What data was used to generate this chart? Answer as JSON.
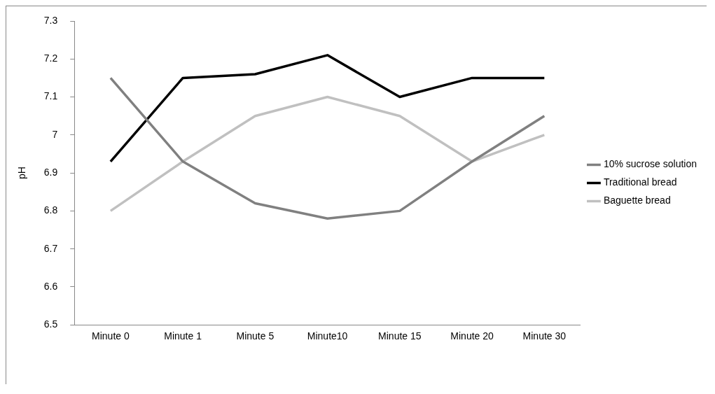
{
  "chart_data": {
    "type": "line",
    "ylabel": "pH",
    "categories": [
      "Minute 0",
      "Minute 1",
      "Minute 5",
      "Minute10",
      "Minute 15",
      "Minute 20",
      "Minute 30"
    ],
    "series": [
      {
        "name": "10% sucrose solution",
        "color": "#808080",
        "values": [
          7.15,
          6.93,
          6.82,
          6.78,
          6.8,
          6.93,
          7.05
        ]
      },
      {
        "name": "Traditional bread",
        "color": "#000000",
        "values": [
          6.93,
          7.15,
          7.16,
          7.21,
          7.1,
          7.15,
          7.15
        ]
      },
      {
        "name": "Baguette bread",
        "color": "#c0c0c0",
        "values": [
          6.8,
          6.93,
          7.05,
          7.1,
          7.05,
          6.93,
          7.0
        ]
      }
    ],
    "ylim": [
      6.5,
      7.3
    ],
    "yticks": [
      6.5,
      6.6,
      6.7,
      6.8,
      6.9,
      7,
      7.1,
      7.2,
      7.3
    ],
    "grid": false,
    "legend": "right",
    "marker": "none",
    "line_style": "solid"
  }
}
